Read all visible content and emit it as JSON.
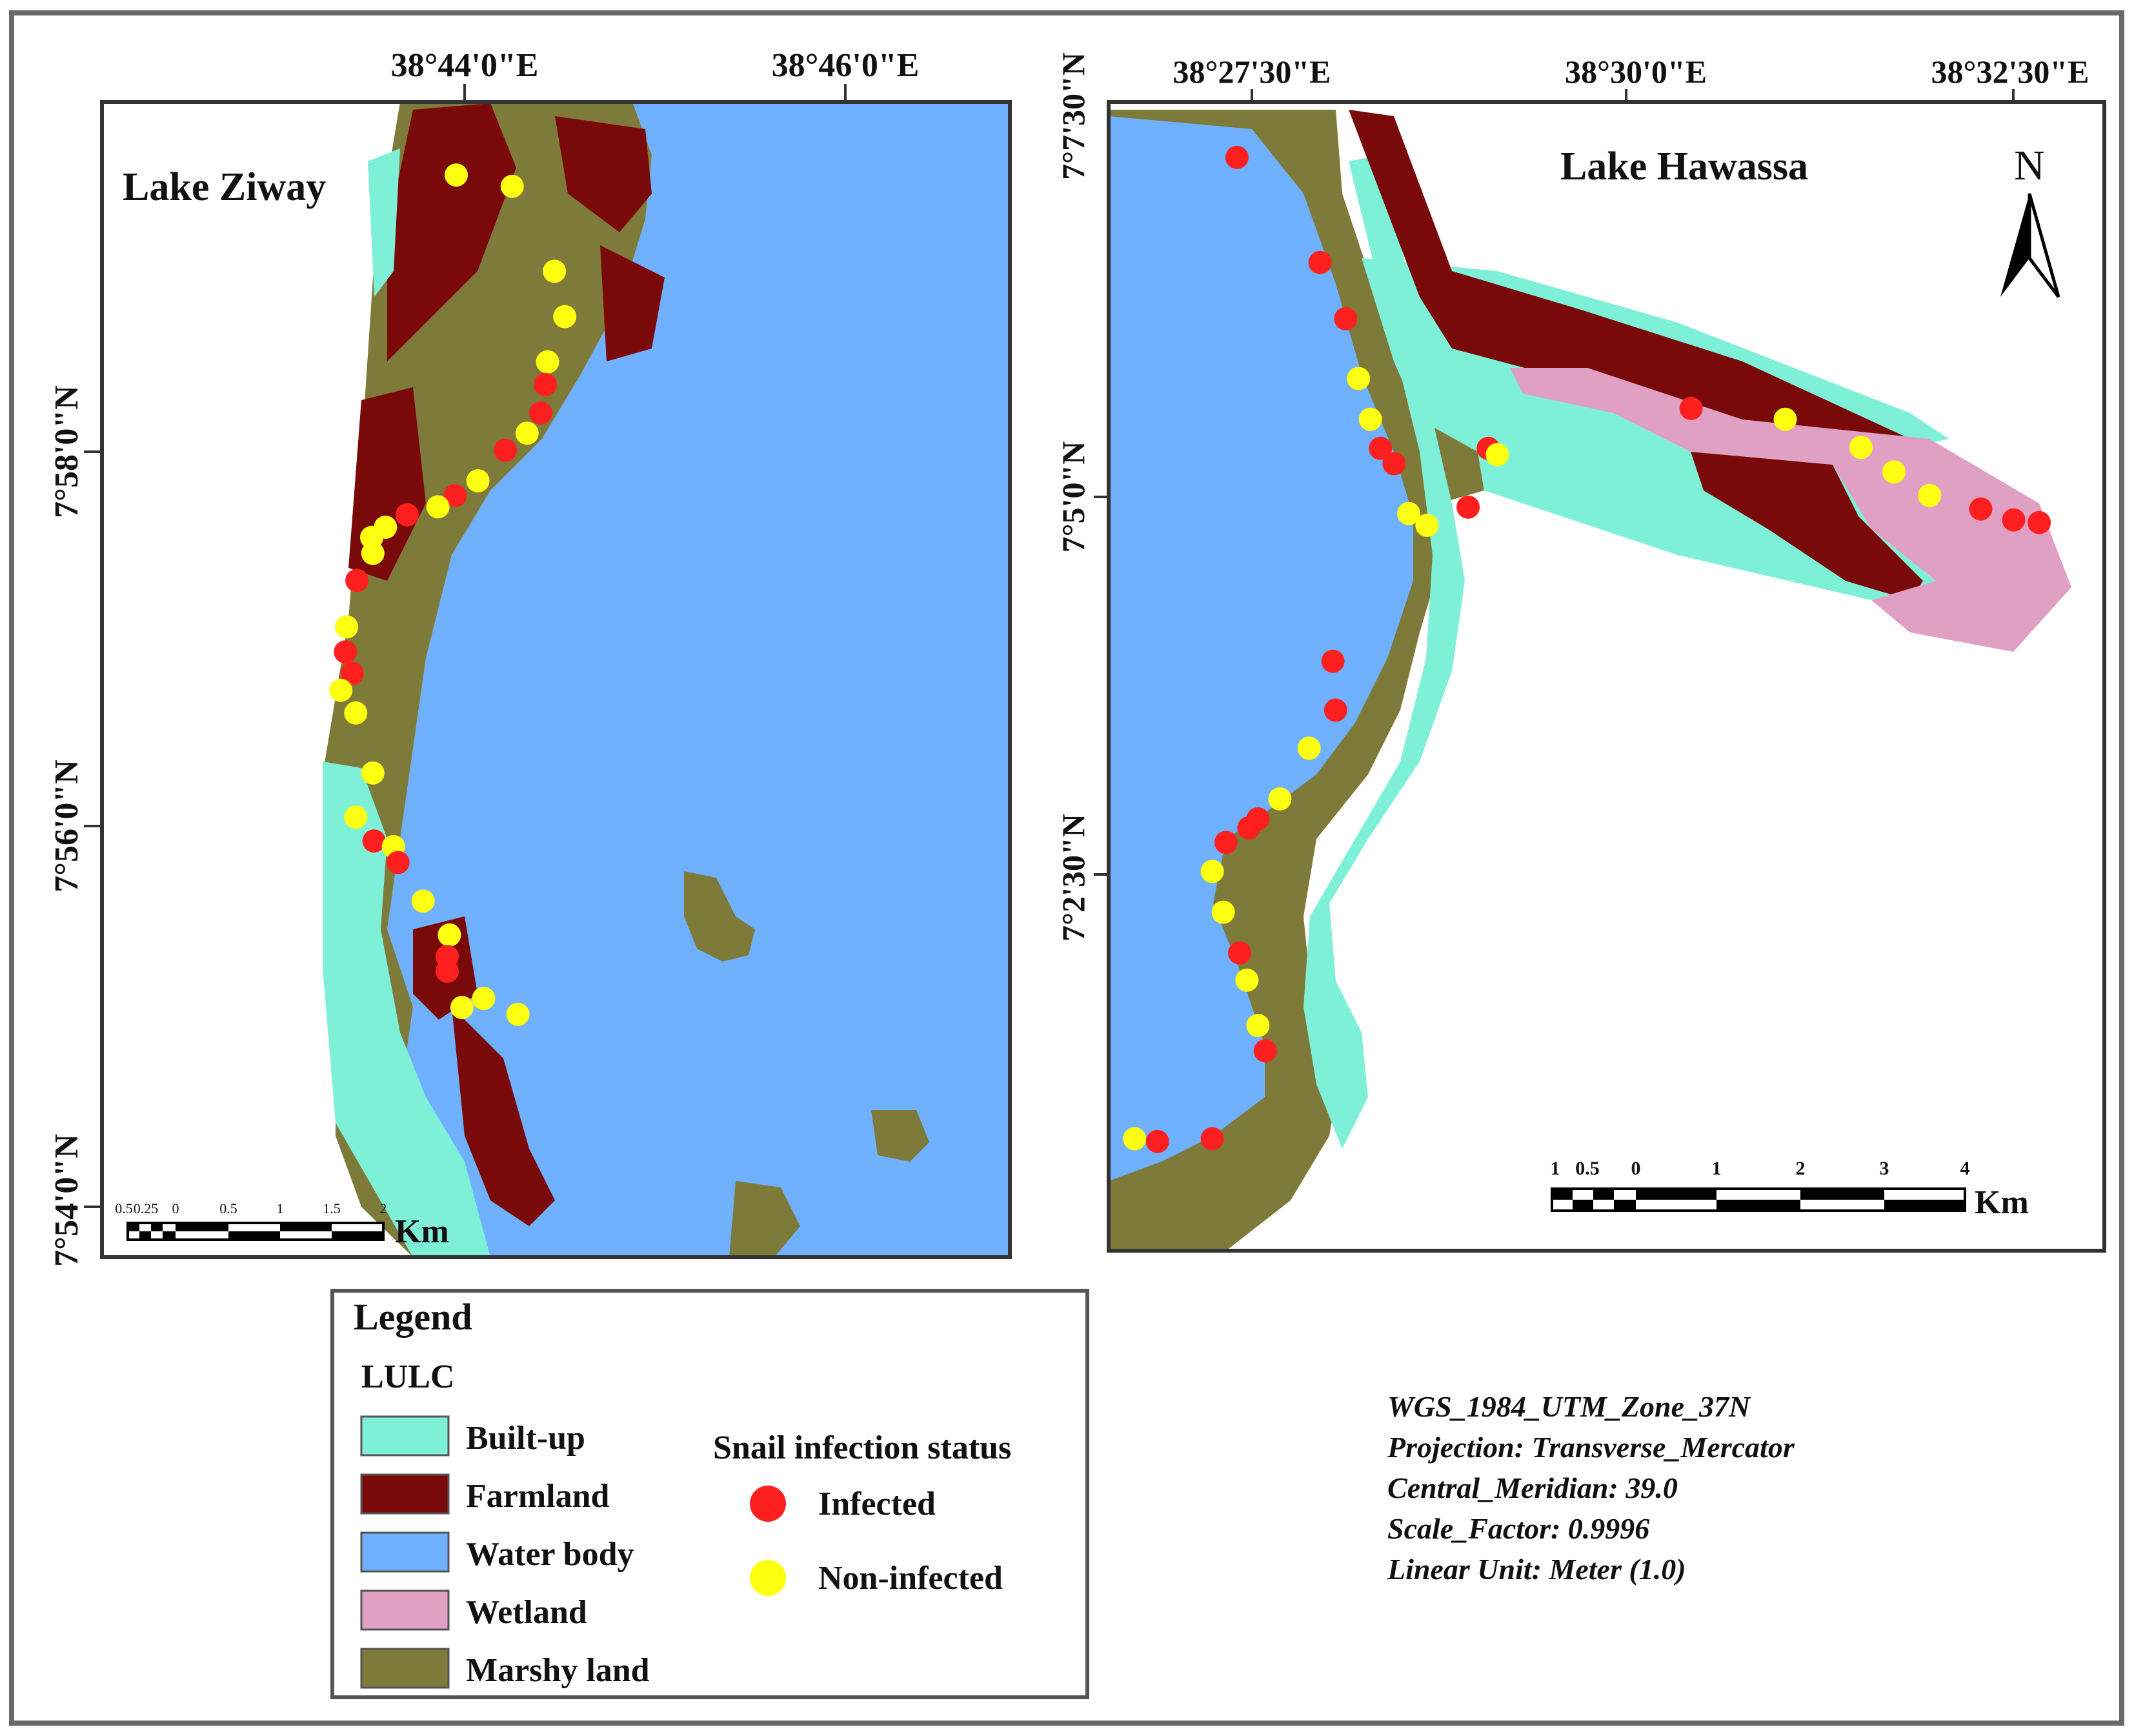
{
  "colors": {
    "built_up": "#7ff0d8",
    "farmland": "#7a0a0a",
    "water_body": "#6fb0ff",
    "wetland": "#dfa0c4",
    "marshy_land": "#7e7a3a",
    "infected": "#ff1f1f",
    "non_infected": "#ffff10"
  },
  "map_left": {
    "title": "Lake Ziway",
    "lon_labels": [
      "38°44'0\"E",
      "38°46'0\"E"
    ],
    "lat_labels": [
      "7°58'0\"N",
      "7°56'0\"N",
      "7°54'0\"N"
    ],
    "scale_numbers": [
      "0.5",
      "0.25",
      "0",
      "0.5",
      "1",
      "1.5",
      "2"
    ],
    "scale_unit": "Km",
    "points": [
      {
        "status": "non-infected",
        "lon": 38.7326,
        "lat": 7.9911
      },
      {
        "status": "non-infected",
        "lon": 38.7375,
        "lat": 7.9901
      },
      {
        "status": "non-infected",
        "lon": 38.7412,
        "lat": 7.9826
      },
      {
        "status": "non-infected",
        "lon": 38.7421,
        "lat": 7.9786
      },
      {
        "status": "non-infected",
        "lon": 38.7406,
        "lat": 7.9746
      },
      {
        "status": "infected",
        "lon": 38.7404,
        "lat": 7.9726
      },
      {
        "status": "infected",
        "lon": 38.74,
        "lat": 7.9701
      },
      {
        "status": "non-infected",
        "lon": 38.7388,
        "lat": 7.9683
      },
      {
        "status": "infected",
        "lon": 38.7369,
        "lat": 7.9668
      },
      {
        "status": "non-infected",
        "lon": 38.7345,
        "lat": 7.9641
      },
      {
        "status": "infected",
        "lon": 38.7325,
        "lat": 7.9628
      },
      {
        "status": "non-infected",
        "lon": 38.731,
        "lat": 7.9618
      },
      {
        "status": "infected",
        "lon": 38.7283,
        "lat": 7.9611
      },
      {
        "status": "non-infected",
        "lon": 38.7264,
        "lat": 7.96
      },
      {
        "status": "non-infected",
        "lon": 38.7252,
        "lat": 7.9591
      },
      {
        "status": "non-infected",
        "lon": 38.7253,
        "lat": 7.9577
      },
      {
        "status": "infected",
        "lon": 38.7239,
        "lat": 7.9553
      },
      {
        "status": "non-infected",
        "lon": 38.723,
        "lat": 7.9512
      },
      {
        "status": "infected",
        "lon": 38.7229,
        "lat": 7.949
      },
      {
        "status": "infected",
        "lon": 38.7235,
        "lat": 7.9471
      },
      {
        "status": "non-infected",
        "lon": 38.7225,
        "lat": 7.9456
      },
      {
        "status": "non-infected",
        "lon": 38.7238,
        "lat": 7.9436
      },
      {
        "status": "non-infected",
        "lon": 38.7253,
        "lat": 7.9383
      },
      {
        "status": "non-infected",
        "lon": 38.7238,
        "lat": 7.9344
      },
      {
        "status": "infected",
        "lon": 38.7254,
        "lat": 7.9323
      },
      {
        "status": "non-infected",
        "lon": 38.7271,
        "lat": 7.9318
      },
      {
        "status": "infected",
        "lon": 38.7275,
        "lat": 7.9304
      },
      {
        "status": "non-infected",
        "lon": 38.7297,
        "lat": 7.927
      },
      {
        "status": "non-infected",
        "lon": 38.732,
        "lat": 7.924
      },
      {
        "status": "infected",
        "lon": 38.7318,
        "lat": 7.9221
      },
      {
        "status": "infected",
        "lon": 38.7318,
        "lat": 7.9208
      },
      {
        "status": "non-infected",
        "lon": 38.7331,
        "lat": 7.9176
      },
      {
        "status": "non-infected",
        "lon": 38.735,
        "lat": 7.9184
      },
      {
        "status": "non-infected",
        "lon": 38.738,
        "lat": 7.917
      }
    ]
  },
  "map_right": {
    "title": "Lake Hawassa",
    "lon_labels": [
      "38°27'30\"E",
      "38°30'0\"E",
      "38°32'30\"E"
    ],
    "lat_labels": [
      "7°7'30\"N",
      "7°5'0\"N",
      "7°2'30\"N"
    ],
    "north_label": "N",
    "scale_numbers": [
      "1",
      "0.5",
      "0",
      "1",
      "2",
      "3",
      "4"
    ],
    "scale_unit": "Km",
    "points": [
      {
        "status": "infected",
        "lon": 38.4567,
        "lat": 7.1208
      },
      {
        "status": "infected",
        "lon": 38.4658,
        "lat": 7.1092
      },
      {
        "status": "infected",
        "lon": 38.4686,
        "lat": 7.103
      },
      {
        "status": "non-infected",
        "lon": 38.47,
        "lat": 7.0964
      },
      {
        "status": "non-infected",
        "lon": 38.4713,
        "lat": 7.0919
      },
      {
        "status": "infected",
        "lon": 38.4724,
        "lat": 7.0887
      },
      {
        "status": "infected",
        "lon": 38.482,
        "lat": 7.0822
      },
      {
        "status": "infected",
        "lon": 38.4739,
        "lat": 7.087
      },
      {
        "status": "infected",
        "lon": 38.4842,
        "lat": 7.0887
      },
      {
        "status": "non-infected",
        "lon": 38.4852,
        "lat": 7.088
      },
      {
        "status": "non-infected",
        "lon": 38.4755,
        "lat": 7.0815
      },
      {
        "status": "non-infected",
        "lon": 38.4775,
        "lat": 7.0802
      },
      {
        "status": "infected",
        "lon": 38.5064,
        "lat": 7.0931
      },
      {
        "status": "non-infected",
        "lon": 38.5167,
        "lat": 7.0919
      },
      {
        "status": "non-infected",
        "lon": 38.525,
        "lat": 7.0888
      },
      {
        "status": "non-infected",
        "lon": 38.5286,
        "lat": 7.0861
      },
      {
        "status": "non-infected",
        "lon": 38.5325,
        "lat": 7.0835
      },
      {
        "status": "infected",
        "lon": 38.5381,
        "lat": 7.082
      },
      {
        "status": "infected",
        "lon": 38.5417,
        "lat": 7.0808
      },
      {
        "status": "infected",
        "lon": 38.5445,
        "lat": 7.0805
      },
      {
        "status": "infected",
        "lon": 38.4672,
        "lat": 7.0652
      },
      {
        "status": "infected",
        "lon": 38.4675,
        "lat": 7.0598
      },
      {
        "status": "non-infected",
        "lon": 38.4646,
        "lat": 7.0556
      },
      {
        "status": "non-infected",
        "lon": 38.4614,
        "lat": 7.05
      },
      {
        "status": "infected",
        "lon": 38.459,
        "lat": 7.0478
      },
      {
        "status": "infected",
        "lon": 38.458,
        "lat": 7.0468
      },
      {
        "status": "infected",
        "lon": 38.4555,
        "lat": 7.0452
      },
      {
        "status": "non-infected",
        "lon": 38.454,
        "lat": 7.042
      },
      {
        "status": "non-infected",
        "lon": 38.4552,
        "lat": 7.0375
      },
      {
        "status": "infected",
        "lon": 38.457,
        "lat": 7.033
      },
      {
        "status": "non-infected",
        "lon": 38.4578,
        "lat": 7.03
      },
      {
        "status": "non-infected",
        "lon": 38.459,
        "lat": 7.025
      },
      {
        "status": "infected",
        "lon": 38.4598,
        "lat": 7.0222
      },
      {
        "status": "non-infected",
        "lon": 38.4455,
        "lat": 7.0125
      },
      {
        "status": "infected",
        "lon": 38.448,
        "lat": 7.0122
      },
      {
        "status": "infected",
        "lon": 38.454,
        "lat": 7.0125
      }
    ]
  },
  "legend": {
    "title": "Legend",
    "lulc_heading": "LULC",
    "classes": [
      "Built-up",
      "Farmland",
      "Water body",
      "Wetland",
      "Marshy land"
    ],
    "snail_heading": "Snail infection status",
    "infected": "Infected",
    "non_infected": "Non-infected"
  },
  "projection": {
    "lines": [
      "WGS_1984_UTM_Zone_37N",
      "Projection: Transverse_Mercator",
      "Central_Meridian: 39.0",
      "Scale_Factor: 0.9996",
      "Linear Unit: Meter (1.0)"
    ]
  }
}
